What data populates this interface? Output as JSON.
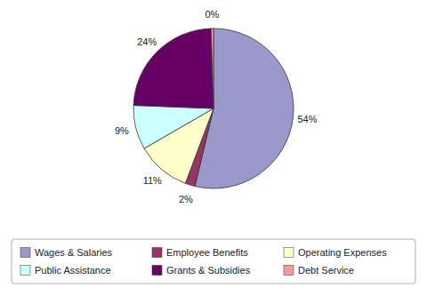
{
  "chart_data": {
    "type": "pie",
    "categories": [
      "Wages & Salaries",
      "Employee Benefits",
      "Operating Expenses",
      "Public Assistance",
      "Grants & Subsidies",
      "Debt Service"
    ],
    "values": [
      54,
      2,
      11,
      9,
      24,
      0.5
    ],
    "value_labels": [
      "54%",
      "2%",
      "11%",
      "9%",
      "24%",
      "0%"
    ],
    "colors": [
      "#9999cc",
      "#993366",
      "#ffffcc",
      "#ccffff",
      "#660066",
      "#ff9999"
    ],
    "data_labels": true,
    "legend": "bottom"
  }
}
